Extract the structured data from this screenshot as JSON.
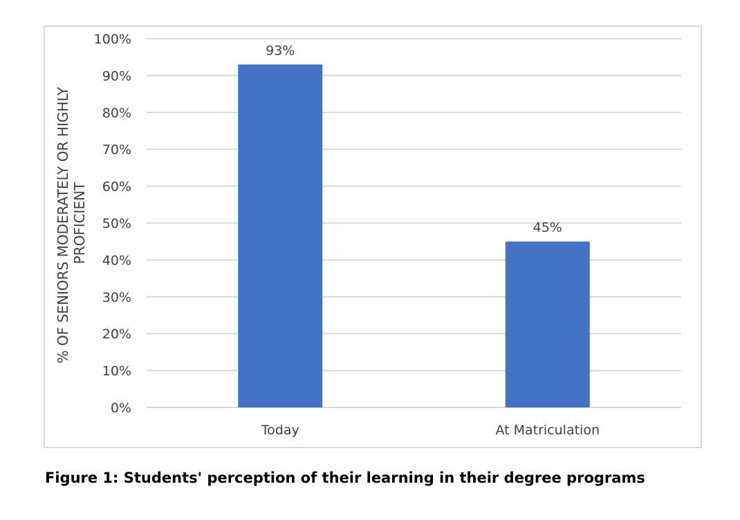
{
  "caption": "Figure 1: Students' perception of their learning in their degree programs",
  "chart_data": {
    "type": "bar",
    "title": "",
    "xlabel": "",
    "ylabel": "% OF SENIORS MODERATELY OR HIGHLY PROFICIENT",
    "ylabel_lines": [
      "% OF SENIORS MODERATELY OR HIGHLY",
      "PROFICIENT"
    ],
    "categories": [
      "Today",
      "At Matriculation"
    ],
    "values": [
      93,
      45
    ],
    "data_labels": [
      "93%",
      "45%"
    ],
    "ylim": [
      0,
      100
    ],
    "yticks": [
      0,
      10,
      20,
      30,
      40,
      50,
      60,
      70,
      80,
      90,
      100
    ],
    "ytick_labels": [
      "0%",
      "10%",
      "20%",
      "30%",
      "40%",
      "50%",
      "60%",
      "70%",
      "80%",
      "90%",
      "100%"
    ],
    "grid": true,
    "legend": "none",
    "colors": {
      "bar": "#4472c4",
      "grid": "#d9d9d9",
      "text": "#404040"
    }
  }
}
